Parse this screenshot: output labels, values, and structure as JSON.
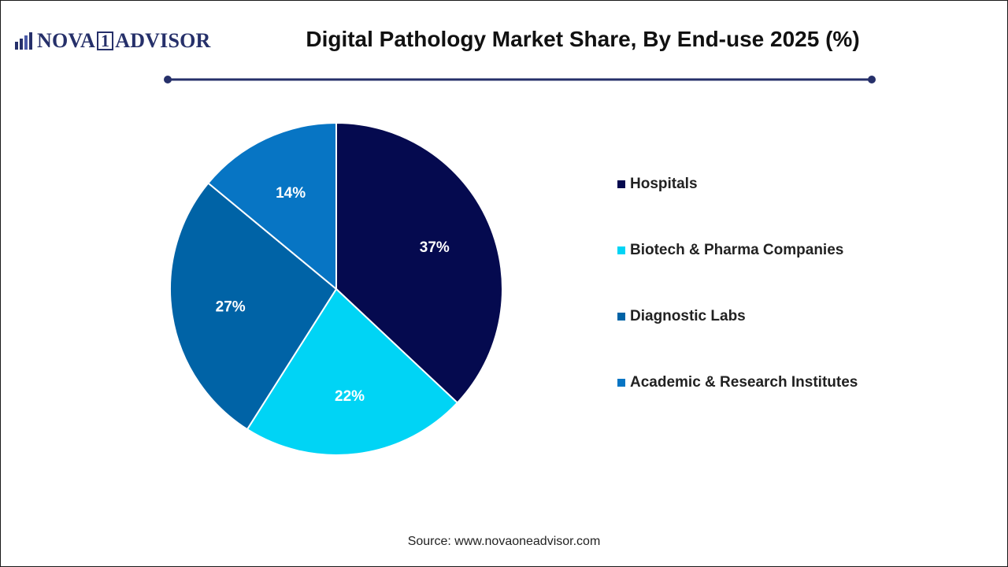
{
  "header": {
    "logo": {
      "text_left": "NOVA",
      "text_one": "1",
      "text_right": "ADVISOR",
      "icon": "bar-chart-icon"
    },
    "title": "Digital Pathology Market Share, By End-use 2025 (%)"
  },
  "colors": {
    "divider": "#26306a",
    "border": "#1a1a1a"
  },
  "chart_data": {
    "type": "pie",
    "title": "Digital Pathology Market Share, By End-use 2025 (%)",
    "categories": [
      "Hospitals",
      "Biotech & Pharma Companies",
      "Diagnostic Labs",
      "Academic & Research Institutes"
    ],
    "values": [
      37,
      22,
      27,
      14
    ],
    "labels": [
      "37%",
      "22%",
      "27%",
      "14%"
    ],
    "colors": [
      "#050a4f",
      "#00d4f5",
      "#0063a6",
      "#0775c4"
    ],
    "legend_position": "right",
    "start_angle": "12 o'clock",
    "direction": "clockwise"
  },
  "footer": {
    "source": "Source: www.novaoneadvisor.com"
  }
}
